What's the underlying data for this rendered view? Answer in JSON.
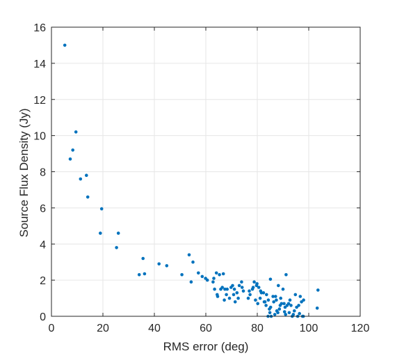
{
  "chart_data": {
    "type": "scatter",
    "title": "",
    "xlabel": "RMS error (deg)",
    "ylabel": "Source Flux Density (Jy)",
    "xlim": [
      0,
      120
    ],
    "ylim": [
      0,
      16
    ],
    "xticks": [
      "0",
      "20",
      "40",
      "60",
      "80",
      "100",
      "120"
    ],
    "yticks": [
      "0",
      "2",
      "4",
      "6",
      "8",
      "10",
      "12",
      "14",
      "16"
    ],
    "grid": true,
    "box": true,
    "marker_color": "#0072BD",
    "series": [
      {
        "x": [
          5.2,
          9.5,
          8.3,
          7.3,
          13.6,
          11.3,
          14.1,
          19.5,
          19.0,
          26.0,
          25.3,
          35.6,
          34.1,
          36.2,
          41.8,
          44.8,
          50.7,
          53.5,
          55.0,
          54.3,
          57.1,
          58.6,
          59.9,
          60.6,
          63.1,
          64.1,
          65.3,
          66.8,
          62.8,
          63.4,
          64.6,
          67.4,
          68.0,
          69.8,
          70.4,
          71.1,
          72.1,
          73.0,
          73.9,
          74.6,
          67.2,
          69.2,
          70.8,
          72.6,
          74.1,
          64.4,
          65.8,
          66.4,
          68.3,
          71.4,
          78.8,
          79.9,
          80.6,
          81.3,
          82.4,
          83.6,
          85.1,
          86.1,
          87.4,
          88.2,
          89.1,
          90.0,
          91.2,
          76.5,
          77.2,
          78.1,
          79.3,
          80.2,
          81.1,
          82.7,
          83.4,
          84.3,
          85.2,
          86.4,
          87.1,
          88.6,
          89.4,
          90.8,
          91.6,
          92.2,
          93.1,
          94.4,
          95.3,
          96.1,
          97.2,
          98.0,
          76.9,
          78.4,
          79.7,
          81.6,
          83.0,
          84.9,
          86.8,
          88.9,
          90.4,
          92.7,
          94.8,
          96.7,
          84.2,
          85.4,
          88.0,
          91.0,
          93.6,
          95.7,
          97.6,
          97.9,
          103.6,
          103.3,
          84.7,
          87.6,
          90.6,
          92.4,
          94.0,
          96.4
        ],
        "y": [
          15.0,
          10.2,
          9.2,
          8.7,
          7.8,
          7.6,
          6.6,
          5.95,
          4.6,
          4.6,
          3.8,
          3.2,
          2.3,
          2.35,
          2.9,
          2.8,
          2.3,
          3.4,
          3.0,
          1.9,
          2.4,
          2.2,
          2.1,
          2.0,
          2.1,
          2.4,
          2.3,
          2.35,
          1.9,
          1.5,
          1.1,
          1.5,
          1.2,
          1.6,
          1.7,
          1.5,
          1.3,
          1.7,
          1.9,
          1.4,
          0.9,
          1.0,
          1.2,
          1.0,
          1.6,
          1.2,
          1.5,
          1.6,
          1.5,
          0.8,
          1.9,
          1.8,
          1.6,
          1.4,
          1.3,
          1.2,
          2.05,
          1.1,
          0.9,
          1.7,
          1.0,
          1.5,
          2.3,
          1.0,
          1.2,
          1.5,
          0.9,
          0.7,
          1.0,
          0.8,
          0.6,
          0.9,
          0.5,
          0.8,
          1.1,
          0.4,
          0.7,
          0.5,
          0.6,
          0.7,
          0.6,
          0.3,
          0.5,
          0.6,
          0.8,
          0.9,
          1.4,
          1.6,
          1.7,
          1.3,
          0.8,
          0.2,
          0.1,
          0.6,
          0.7,
          0.9,
          1.2,
          1.1,
          0.0,
          0.0,
          0.2,
          0.1,
          0.0,
          0.0,
          0.0,
          0.0,
          1.45,
          0.45,
          0.4,
          0.3,
          0.25,
          0.2,
          0.1,
          0.15
        ]
      }
    ]
  }
}
